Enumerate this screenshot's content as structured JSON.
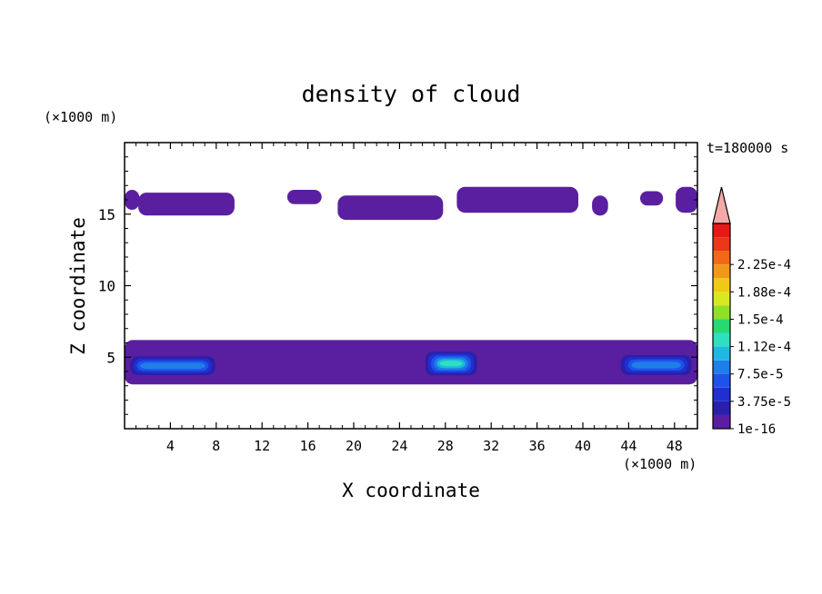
{
  "chart_data": {
    "type": "heatmap",
    "title": "density of cloud",
    "xlabel": "X coordinate",
    "ylabel": "Z coordinate",
    "x_unit": "(×1000 m)",
    "y_unit": "(×1000 m)",
    "time_label": "t=180000 s",
    "xlim": [
      0,
      50
    ],
    "ylim": [
      0,
      20
    ],
    "x_ticks": [
      4,
      8,
      12,
      16,
      20,
      24,
      28,
      32,
      36,
      40,
      44,
      48
    ],
    "y_ticks": [
      5,
      10,
      15
    ],
    "colorbar": {
      "labels": [
        "1e-16",
        "3.75e-5",
        "7.5e-5",
        "1.12e-4",
        "1.5e-4",
        "1.88e-4",
        "2.25e-4"
      ],
      "colors": [
        "#5a1fa0",
        "#2a1fa8",
        "#1f2fd0",
        "#1f52e8",
        "#1f7ee8",
        "#1fb8e0",
        "#2ee0c0",
        "#28d870",
        "#8ee028",
        "#d8e820",
        "#f0c818",
        "#f09818",
        "#f06818",
        "#e83818",
        "#e81818"
      ],
      "extend_color": "#f4a8a8"
    },
    "cloud_regions": [
      {
        "layer": "upper",
        "x": [
          0,
          1.3
        ],
        "z": [
          15.3,
          16.7
        ],
        "density": "1e-16"
      },
      {
        "layer": "upper",
        "x": [
          1.2,
          9.6
        ],
        "z": [
          14.9,
          16.5
        ],
        "density": "1e-16"
      },
      {
        "layer": "upper",
        "x": [
          14.2,
          17.2
        ],
        "z": [
          15.7,
          16.7
        ],
        "density": "1e-16"
      },
      {
        "layer": "upper",
        "x": [
          18.6,
          27.8
        ],
        "z": [
          14.6,
          16.3
        ],
        "density": "1e-16"
      },
      {
        "layer": "upper",
        "x": [
          29.0,
          39.6
        ],
        "z": [
          15.1,
          16.9
        ],
        "density": "1e-16"
      },
      {
        "layer": "upper",
        "x": [
          40.8,
          42.2
        ],
        "z": [
          14.9,
          16.3
        ],
        "density": "1e-16"
      },
      {
        "layer": "upper",
        "x": [
          45.0,
          47.0
        ],
        "z": [
          15.6,
          16.6
        ],
        "density": "1e-16"
      },
      {
        "layer": "upper",
        "x": [
          48.1,
          50
        ],
        "z": [
          15.1,
          16.9
        ],
        "density": "1e-16"
      },
      {
        "layer": "lower",
        "x": [
          0,
          50
        ],
        "z": [
          3.1,
          6.2
        ],
        "density": "1e-16"
      },
      {
        "layer": "lower-core",
        "x": [
          0.2,
          8.2
        ],
        "z": [
          3.6,
          5.2
        ],
        "density": "7.5e-5"
      },
      {
        "layer": "lower-core",
        "x": [
          26.0,
          31.0
        ],
        "z": [
          3.6,
          5.5
        ],
        "density": "1.12e-4"
      },
      {
        "layer": "lower-core",
        "x": [
          43.0,
          49.8
        ],
        "z": [
          3.6,
          5.3
        ],
        "density": "7.5e-5"
      }
    ]
  }
}
